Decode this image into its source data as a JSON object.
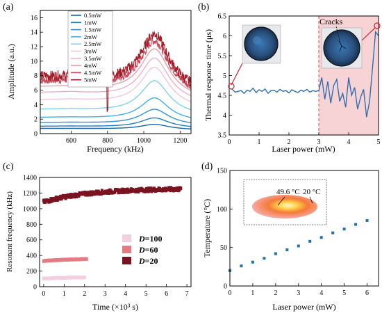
{
  "chart_data": [
    {
      "panel": "(a)",
      "type": "line",
      "xlabel": "Frequency (kHz)",
      "ylabel": "Amplitude (a.u.)",
      "xlim": [
        430,
        1260
      ],
      "ylim": [
        0,
        17
      ],
      "xticks": [
        600,
        800,
        1000,
        1200
      ],
      "yticks": [
        0,
        2,
        4,
        6,
        8,
        10,
        12,
        14,
        16
      ],
      "legend_position": "top-left",
      "series": [
        {
          "name": "0.5mW",
          "color": "#1565a8",
          "peak": 1.3,
          "base": 0.7
        },
        {
          "name": "1mW",
          "color": "#1f7bc0",
          "peak": 2.2,
          "base": 1.0
        },
        {
          "name": "1.5mW",
          "color": "#2c93d6",
          "peak": 3.4,
          "base": 1.5
        },
        {
          "name": "2mW",
          "color": "#3fb0e6",
          "peak": 5.0,
          "base": 2.2
        },
        {
          "name": "2.5mW",
          "color": "#7fd0ef",
          "peak": 7.4,
          "base": 3.3
        },
        {
          "name": "3mW",
          "color": "#f4c6d4",
          "peak": 9.3,
          "base": 4.6
        },
        {
          "name": "3.5mW",
          "color": "#eeb1c2",
          "peak": 10.6,
          "base": 5.6
        },
        {
          "name": "4mW",
          "color": "#e6a0a8",
          "peak": 11.9,
          "base": 6.4
        },
        {
          "name": "4.5mW",
          "color": "#c9495a",
          "peak": 13.0,
          "base": 7.2
        },
        {
          "name": "5mW",
          "color": "#a31b27",
          "peak": 14.0,
          "base": 7.8
        }
      ]
    },
    {
      "panel": "(b)",
      "type": "line",
      "xlabel": "Laser power (mW)",
      "ylabel": "Thermal response time (μs)",
      "xlim": [
        0,
        5
      ],
      "ylim": [
        3.5,
        6.5
      ],
      "xticks": [
        0,
        1,
        2,
        3,
        4,
        5
      ],
      "yticks": [
        3.5,
        4,
        4.5,
        5,
        5.5,
        6,
        6.5
      ],
      "shaded_region_x": [
        3,
        5
      ],
      "annotation": "Cracks",
      "x": [
        0.1,
        0.2,
        0.3,
        0.4,
        0.5,
        0.6,
        0.7,
        0.8,
        0.9,
        1.0,
        1.1,
        1.2,
        1.3,
        1.4,
        1.5,
        1.6,
        1.7,
        1.8,
        1.9,
        2.0,
        2.1,
        2.2,
        2.3,
        2.4,
        2.5,
        2.6,
        2.7,
        2.8,
        2.9,
        3.0,
        3.1,
        3.2,
        3.3,
        3.4,
        3.5,
        3.6,
        3.7,
        3.8,
        3.9,
        4.0,
        4.1,
        4.2,
        4.3,
        4.4,
        4.5,
        4.6,
        4.7,
        4.8,
        4.9,
        5.0
      ],
      "y": [
        4.65,
        4.58,
        4.6,
        4.62,
        4.55,
        4.63,
        4.6,
        4.68,
        4.57,
        4.64,
        4.6,
        4.66,
        4.55,
        4.62,
        4.63,
        4.58,
        4.65,
        4.6,
        4.62,
        4.56,
        4.64,
        4.6,
        4.57,
        4.63,
        4.6,
        4.65,
        4.58,
        4.62,
        4.6,
        4.62,
        4.95,
        4.4,
        4.85,
        4.3,
        4.75,
        4.9,
        4.35,
        4.55,
        4.2,
        4.95,
        4.5,
        4.7,
        4.15,
        4.45,
        4.65,
        3.95,
        4.35,
        5.2,
        6.1,
        6.0
      ]
    },
    {
      "panel": "(c)",
      "type": "scatter",
      "xlabel": "Time (×10³ s)",
      "ylabel": "Resonant frequency (kHz)",
      "xlim": [
        -0.2,
        7.2
      ],
      "ylim": [
        0,
        1400
      ],
      "xticks": [
        0,
        1,
        2,
        3,
        4,
        5,
        6,
        7
      ],
      "yticks": [
        0,
        200,
        400,
        600,
        800,
        1000,
        1200,
        1400
      ],
      "legend_position": "right",
      "series": [
        {
          "name": "D=100",
          "color": "#f3cfe0",
          "x_range": [
            0,
            2.0
          ],
          "y_range": [
            105,
            120
          ]
        },
        {
          "name": "D=60",
          "color": "#e57b82",
          "x_range": [
            0,
            2.1
          ],
          "y_range": [
            330,
            355
          ]
        },
        {
          "name": "D=20",
          "color": "#7a1320",
          "x_range": [
            0,
            6.7
          ],
          "y_range": [
            1085,
            1250
          ]
        }
      ]
    },
    {
      "panel": "(d)",
      "type": "scatter",
      "xlabel": "Laser power (mW)",
      "ylabel": "Temperature (°C)",
      "xlim": [
        0,
        6.5
      ],
      "ylim": [
        0,
        150
      ],
      "xticks": [
        0,
        1,
        2,
        3,
        4,
        5,
        6
      ],
      "yticks": [
        0,
        50,
        100,
        150
      ],
      "inset_labels": [
        "49.6 °C",
        "20 °C"
      ],
      "x": [
        0,
        0.5,
        1,
        1.5,
        2,
        2.5,
        3,
        3.5,
        4,
        4.5,
        5,
        5.5,
        6
      ],
      "y": [
        20,
        26,
        31,
        36,
        42,
        47,
        52,
        58,
        63,
        69,
        74,
        80,
        85
      ]
    }
  ],
  "colors": {
    "blue_line": "#2f6fb0",
    "shade": "#f7d3d5",
    "marker_d": "#1e74a8",
    "annotation_red": "#d21f2a"
  }
}
